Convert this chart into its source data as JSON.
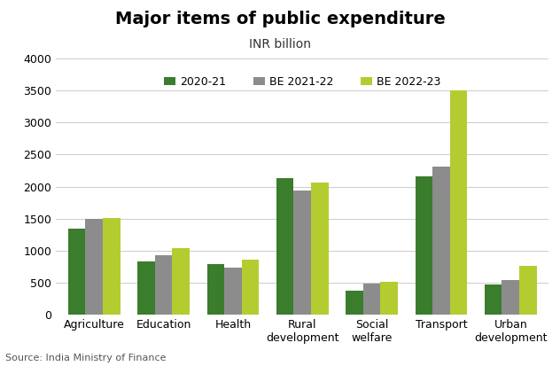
{
  "title": "Major items of public expenditure",
  "subtitle": "INR billion",
  "categories": [
    "Agriculture",
    "Education",
    "Health",
    "Rural\ndevelopment",
    "Social\nwelfare",
    "Transport",
    "Urban\ndevelopment"
  ],
  "series": [
    {
      "label": "2020-21",
      "color": "#3a7d2c",
      "values": [
        1340,
        830,
        790,
        2140,
        370,
        2160,
        470
      ]
    },
    {
      "label": "BE 2021-22",
      "color": "#8c8c8c",
      "values": [
        1500,
        930,
        740,
        1940,
        490,
        2320,
        540
      ]
    },
    {
      "label": "BE 2022-23",
      "color": "#b5cc30",
      "values": [
        1510,
        1040,
        860,
        2060,
        510,
        3500,
        770
      ]
    }
  ],
  "ylim": [
    0,
    4000
  ],
  "yticks": [
    0,
    500,
    1000,
    1500,
    2000,
    2500,
    3000,
    3500,
    4000
  ],
  "source": "Source: India Ministry of Finance",
  "background_color": "#ffffff",
  "grid_color": "#cccccc",
  "title_fontsize": 14,
  "subtitle_fontsize": 10,
  "legend_fontsize": 9,
  "tick_fontsize": 9,
  "source_fontsize": 8
}
